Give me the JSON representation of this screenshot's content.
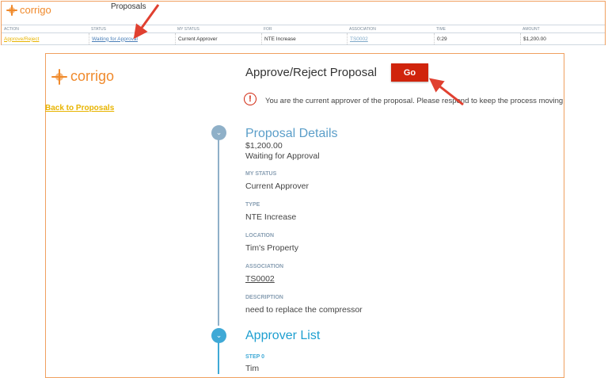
{
  "top": {
    "logo_text": "corrigo",
    "title": "Proposals",
    "columns": [
      "ACTION",
      "STATUS",
      "MY STATUS",
      "FOR",
      "ASSOCIATION",
      "TIME",
      "AMOUNT"
    ],
    "row": {
      "action": "Approve/Reject",
      "status": "Waiting for Approval",
      "my_status": "Current Approver",
      "for": "NTE Increase",
      "association": "TS0002",
      "time": "0:29",
      "amount": "$1,200.00"
    }
  },
  "main": {
    "logo_text": "corrigo",
    "back_link": "Back to Proposals",
    "title": "Approve/Reject Proposal",
    "go_label": "Go",
    "warning": "You are the current approver of the proposal. Please respond to keep the process moving",
    "details": {
      "heading": "Proposal Details",
      "amount": "$1,200.00",
      "status": "Waiting for Approval",
      "fields": [
        {
          "label": "MY STATUS",
          "value": "Current Approver"
        },
        {
          "label": "TYPE",
          "value": "NTE Increase"
        },
        {
          "label": "LOCATION",
          "value": "Tim's Property"
        },
        {
          "label": "ASSOCIATION",
          "value": "TS0002"
        },
        {
          "label": "DESCRIPTION",
          "value": "need to replace the compressor"
        }
      ]
    },
    "approvers": {
      "heading": "Approver List",
      "step_label": "STEP 0",
      "step_value": "Tim"
    }
  },
  "colors": {
    "brand": "#f08a2c",
    "go": "#d0240c",
    "details_heading": "#5b9ec9",
    "approver_heading": "#1e9fd0",
    "link_yellow": "#e8b400"
  }
}
